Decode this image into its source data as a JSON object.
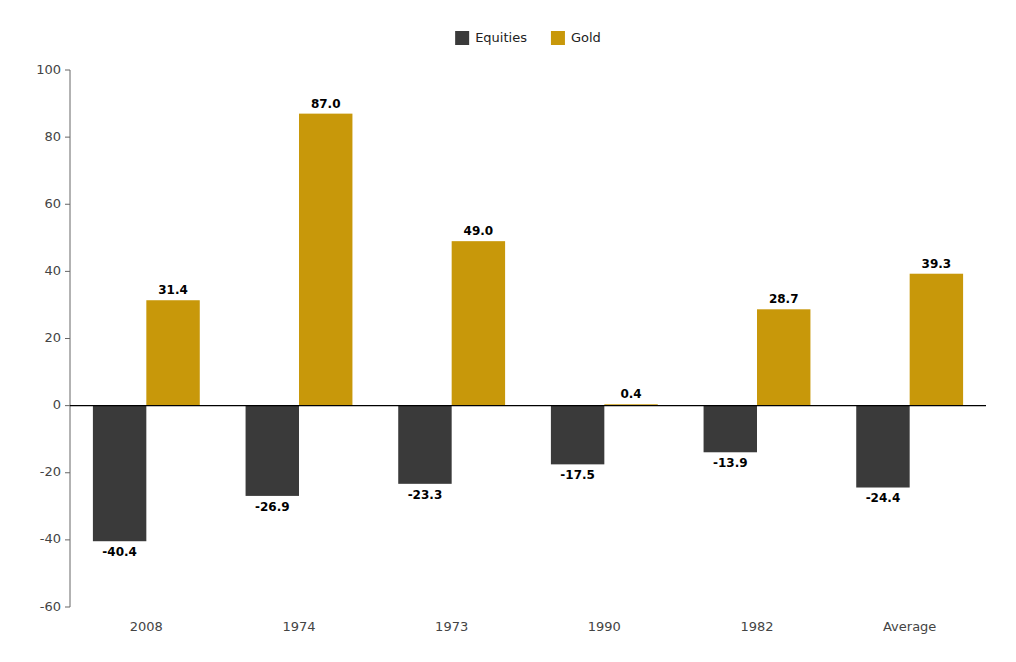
{
  "chart_data": {
    "type": "bar",
    "categories": [
      "2008",
      "1974",
      "1973",
      "1990",
      "1982",
      "Average"
    ],
    "series": [
      {
        "name": "Equities",
        "color": "#3a3a3a",
        "values": [
          -40.4,
          -26.9,
          -23.3,
          -17.5,
          -13.9,
          -24.4
        ]
      },
      {
        "name": "Gold",
        "color": "#c8980a",
        "values": [
          31.4,
          87.0,
          49.0,
          0.4,
          28.7,
          39.3
        ],
        "value_labels": [
          "31.4",
          "87.0",
          "49.0",
          "0.4",
          "28.7",
          "39.3"
        ]
      }
    ],
    "ylim": [
      -60,
      100
    ],
    "yticks": [
      -60,
      -40,
      -20,
      0,
      20,
      40,
      60,
      80,
      100
    ],
    "grid": false,
    "legend": "top",
    "data_labels": true
  }
}
